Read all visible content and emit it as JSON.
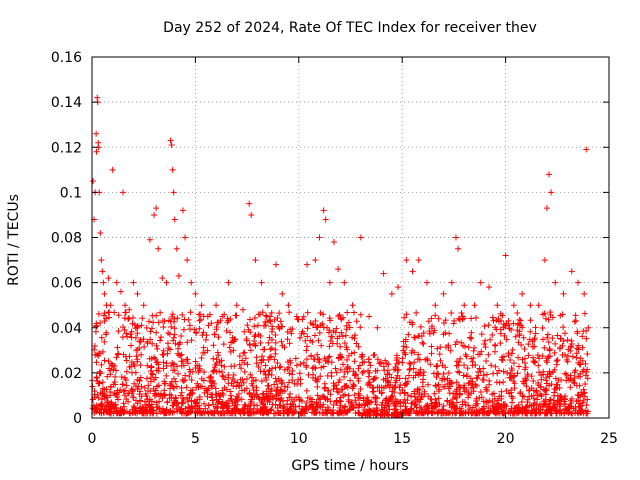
{
  "chart_data": {
    "type": "scatter",
    "title": "Day 252 of 2024, Rate Of TEC Index for receiver thev",
    "xlabel": "GPS time / hours",
    "ylabel": "ROTI / TECUs",
    "xlim": [
      0,
      25
    ],
    "ylim": [
      0,
      0.16
    ],
    "xticks": [
      0,
      5,
      10,
      15,
      20,
      25
    ],
    "xtick_labels": [
      "0",
      "5",
      "10",
      "15",
      "20",
      "25"
    ],
    "yticks": [
      0,
      0.02,
      0.04,
      0.06,
      0.08,
      0.1,
      0.12,
      0.14,
      0.16
    ],
    "ytick_labels": [
      "0",
      "0.02",
      "0.04",
      "0.06",
      "0.08",
      "0.1",
      "0.12",
      "0.14",
      "0.16"
    ],
    "grid": true,
    "marker": "+",
    "color": "#ff0000",
    "series": [
      {
        "name": "ROTI",
        "points": [
          [
            0.05,
            0.105
          ],
          [
            0.1,
            0.088
          ],
          [
            0.15,
            0.1
          ],
          [
            0.2,
            0.126
          ],
          [
            0.22,
            0.118
          ],
          [
            0.25,
            0.142
          ],
          [
            0.28,
            0.14
          ],
          [
            0.3,
            0.122
          ],
          [
            0.32,
            0.12
          ],
          [
            0.35,
            0.1
          ],
          [
            0.4,
            0.082
          ],
          [
            0.45,
            0.07
          ],
          [
            0.5,
            0.065
          ],
          [
            0.55,
            0.06
          ],
          [
            0.6,
            0.055
          ],
          [
            0.7,
            0.05
          ],
          [
            0.8,
            0.062
          ],
          [
            0.9,
            0.05
          ],
          [
            1.0,
            0.11
          ],
          [
            1.2,
            0.06
          ],
          [
            1.4,
            0.056
          ],
          [
            1.5,
            0.1
          ],
          [
            1.6,
            0.05
          ],
          [
            1.8,
            0.048
          ],
          [
            2.0,
            0.06
          ],
          [
            2.2,
            0.055
          ],
          [
            2.5,
            0.05
          ],
          [
            2.8,
            0.079
          ],
          [
            3.0,
            0.09
          ],
          [
            3.1,
            0.093
          ],
          [
            3.2,
            0.075
          ],
          [
            3.4,
            0.062
          ],
          [
            3.6,
            0.06
          ],
          [
            3.8,
            0.123
          ],
          [
            3.85,
            0.121
          ],
          [
            3.9,
            0.11
          ],
          [
            3.95,
            0.1
          ],
          [
            4.0,
            0.088
          ],
          [
            4.1,
            0.075
          ],
          [
            4.2,
            0.063
          ],
          [
            4.4,
            0.092
          ],
          [
            4.5,
            0.08
          ],
          [
            4.6,
            0.07
          ],
          [
            4.8,
            0.06
          ],
          [
            5.0,
            0.055
          ],
          [
            5.3,
            0.05
          ],
          [
            5.6,
            0.045
          ],
          [
            6.0,
            0.05
          ],
          [
            6.3,
            0.045
          ],
          [
            6.6,
            0.06
          ],
          [
            7.0,
            0.05
          ],
          [
            7.3,
            0.048
          ],
          [
            7.6,
            0.095
          ],
          [
            7.7,
            0.09
          ],
          [
            7.9,
            0.07
          ],
          [
            8.2,
            0.06
          ],
          [
            8.5,
            0.05
          ],
          [
            8.9,
            0.068
          ],
          [
            9.2,
            0.055
          ],
          [
            9.5,
            0.05
          ],
          [
            9.9,
            0.045
          ],
          [
            10.4,
            0.068
          ],
          [
            10.8,
            0.07
          ],
          [
            11.0,
            0.08
          ],
          [
            11.2,
            0.092
          ],
          [
            11.3,
            0.088
          ],
          [
            11.5,
            0.06
          ],
          [
            11.7,
            0.078
          ],
          [
            11.9,
            0.066
          ],
          [
            12.2,
            0.06
          ],
          [
            12.6,
            0.05
          ],
          [
            13.0,
            0.08
          ],
          [
            13.4,
            0.045
          ],
          [
            13.8,
            0.04
          ],
          [
            14.1,
            0.064
          ],
          [
            14.5,
            0.055
          ],
          [
            14.8,
            0.058
          ],
          [
            15.2,
            0.07
          ],
          [
            15.5,
            0.065
          ],
          [
            15.8,
            0.07
          ],
          [
            16.2,
            0.06
          ],
          [
            16.6,
            0.05
          ],
          [
            17.0,
            0.055
          ],
          [
            17.4,
            0.06
          ],
          [
            17.6,
            0.08
          ],
          [
            17.7,
            0.075
          ],
          [
            18.0,
            0.05
          ],
          [
            18.5,
            0.05
          ],
          [
            18.8,
            0.06
          ],
          [
            19.2,
            0.058
          ],
          [
            19.6,
            0.05
          ],
          [
            20.0,
            0.072
          ],
          [
            20.4,
            0.05
          ],
          [
            20.8,
            0.055
          ],
          [
            21.2,
            0.05
          ],
          [
            21.6,
            0.05
          ],
          [
            21.9,
            0.07
          ],
          [
            22.0,
            0.093
          ],
          [
            22.1,
            0.108
          ],
          [
            22.2,
            0.1
          ],
          [
            22.4,
            0.06
          ],
          [
            22.8,
            0.055
          ],
          [
            23.2,
            0.065
          ],
          [
            23.5,
            0.06
          ],
          [
            23.8,
            0.055
          ],
          [
            23.9,
            0.119
          ],
          [
            24.0,
            0.04
          ]
        ]
      }
    ],
    "note": "Dense cluster of points between 0.0 and ~0.04 TECUs spanning the full day (0-24 h)."
  }
}
